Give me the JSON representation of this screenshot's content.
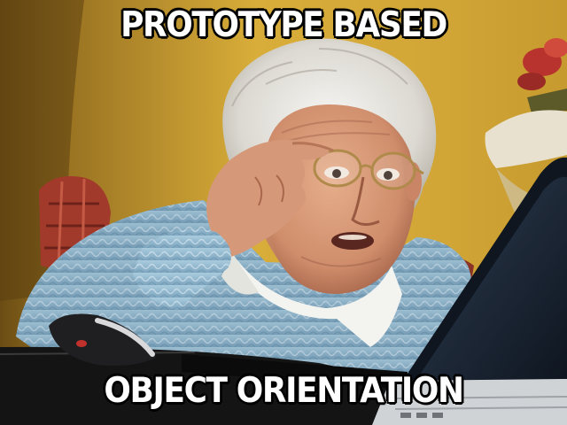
{
  "meme": {
    "top_text": "PROTOTYPE BASED",
    "bottom_text": "OBJECT ORIENTATION",
    "text_color": "#ffffff",
    "outline_color": "#000000"
  },
  "scene": {
    "subject": "elderly woman peering at a laptop screen through her glasses",
    "palette": {
      "wall": "#d7aa35",
      "wall_shadow": "#8a6a1d",
      "hair": "#e8e6e0",
      "skin": "#d99b78",
      "sweater": "#9cc3d8",
      "collar": "#f4f4f2",
      "laptop": "#1c2733",
      "desk": "#141414"
    }
  }
}
